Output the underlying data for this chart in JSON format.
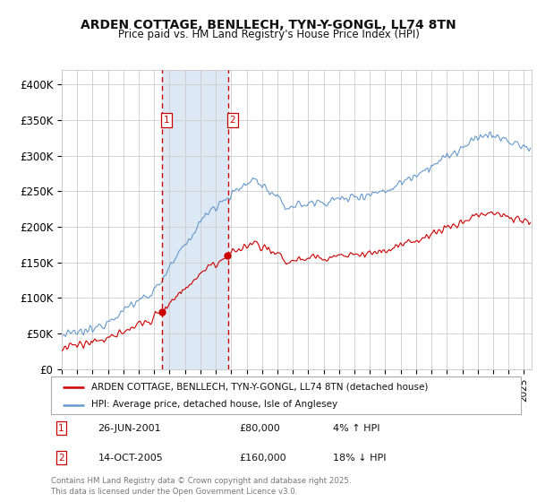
{
  "title1": "ARDEN COTTAGE, BENLLECH, TYN-Y-GONGL, LL74 8TN",
  "title2": "Price paid vs. HM Land Registry's House Price Index (HPI)",
  "ylim": [
    0,
    420000
  ],
  "yticks": [
    0,
    50000,
    100000,
    150000,
    200000,
    250000,
    300000,
    350000,
    400000
  ],
  "ytick_labels": [
    "£0",
    "£50K",
    "£100K",
    "£150K",
    "£200K",
    "£250K",
    "£300K",
    "£350K",
    "£400K"
  ],
  "vline1_x": 2001.48,
  "vline2_x": 2005.79,
  "vline1_label": "1",
  "vline2_label": "2",
  "shade_color": "#dce9f5",
  "vline_color": "#cc0000",
  "legend_entry1": "ARDEN COTTAGE, BENLLECH, TYN-Y-GONGL, LL74 8TN (detached house)",
  "legend_entry2": "HPI: Average price, detached house, Isle of Anglesey",
  "table_rows": [
    {
      "num": "1",
      "date": "26-JUN-2001",
      "price": "£80,000",
      "hpi": "4% ↑ HPI"
    },
    {
      "num": "2",
      "date": "14-OCT-2005",
      "price": "£160,000",
      "hpi": "18% ↓ HPI"
    }
  ],
  "footnote": "Contains HM Land Registry data © Crown copyright and database right 2025.\nThis data is licensed under the Open Government Licence v3.0.",
  "line1_color": "#cc0000",
  "line2_color": "#6699cc",
  "background_color": "#ffffff",
  "grid_color": "#cccccc",
  "sale1_t": 2001.48,
  "sale1_price": 80000,
  "sale2_t": 2005.79,
  "sale2_price": 160000,
  "xlim_start": 1995,
  "xlim_end": 2025.5
}
